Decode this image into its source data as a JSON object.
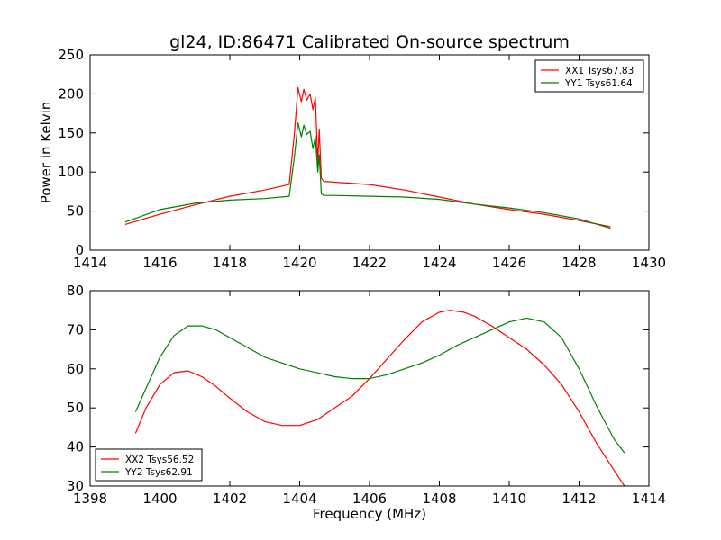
{
  "figure_title": "gl24, ID:86471 Calibrated On-source spectrum",
  "colors": {
    "xx": "#ff0000",
    "yy": "#008000"
  },
  "chart_data": [
    {
      "type": "line",
      "xlabel": "",
      "ylabel": "Power in Kelvin",
      "xlim": [
        1414,
        1430
      ],
      "ylim": [
        0,
        250
      ],
      "xticks": [
        1414,
        1416,
        1418,
        1420,
        1422,
        1424,
        1426,
        1428,
        1430
      ],
      "yticks": [
        0,
        50,
        100,
        150,
        200,
        250
      ],
      "legend_position": "top-right",
      "series": [
        {
          "name": "XX1 Tsys67.83",
          "color": "#ff0000",
          "x": [
            1415.0,
            1416.0,
            1417.0,
            1418.0,
            1419.0,
            1419.7,
            1419.85,
            1419.95,
            1420.05,
            1420.12,
            1420.2,
            1420.3,
            1420.38,
            1420.45,
            1420.52,
            1420.56,
            1420.62,
            1420.7,
            1421.0,
            1422.0,
            1423.0,
            1424.0,
            1425.0,
            1426.0,
            1427.0,
            1428.0,
            1428.9
          ],
          "y": [
            33,
            46,
            58,
            69,
            77,
            84,
            150,
            208,
            190,
            206,
            192,
            200,
            180,
            195,
            110,
            155,
            92,
            88,
            87,
            84,
            77,
            68,
            59,
            52,
            46,
            38,
            30
          ]
        },
        {
          "name": "YY1 Tsys61.64",
          "color": "#008000",
          "x": [
            1415.0,
            1416.0,
            1417.0,
            1418.0,
            1419.0,
            1419.7,
            1419.85,
            1419.95,
            1420.05,
            1420.12,
            1420.2,
            1420.3,
            1420.38,
            1420.45,
            1420.52,
            1420.56,
            1420.62,
            1420.7,
            1421.0,
            1422.0,
            1423.0,
            1424.0,
            1425.0,
            1426.0,
            1427.0,
            1428.0,
            1428.9
          ],
          "y": [
            36,
            52,
            60,
            64,
            66,
            69,
            120,
            163,
            145,
            160,
            148,
            152,
            130,
            145,
            100,
            122,
            72,
            70,
            70,
            69,
            68,
            65,
            59,
            54,
            48,
            40,
            28
          ]
        }
      ]
    },
    {
      "type": "line",
      "xlabel": "Frequency (MHz)",
      "ylabel": "",
      "xlim": [
        1398,
        1414
      ],
      "ylim": [
        30,
        80
      ],
      "xticks": [
        1398,
        1400,
        1402,
        1404,
        1406,
        1408,
        1410,
        1412,
        1414
      ],
      "yticks": [
        30,
        40,
        50,
        60,
        70,
        80
      ],
      "legend_position": "bottom-left",
      "series": [
        {
          "name": "XX2 Tsys56.52",
          "color": "#ff0000",
          "x": [
            1399.3,
            1399.6,
            1400.0,
            1400.4,
            1400.8,
            1401.2,
            1401.6,
            1402.0,
            1402.5,
            1403.0,
            1403.5,
            1404.0,
            1404.5,
            1405.0,
            1405.5,
            1406.0,
            1406.5,
            1407.0,
            1407.5,
            1408.0,
            1408.3,
            1408.7,
            1409.0,
            1409.5,
            1410.0,
            1410.5,
            1411.0,
            1411.5,
            1412.0,
            1412.5,
            1413.0,
            1413.3
          ],
          "y": [
            43.5,
            50,
            56,
            59,
            59.5,
            58,
            55.5,
            52.5,
            49,
            46.5,
            45.5,
            45.5,
            47,
            50,
            53,
            57.5,
            62.5,
            67.5,
            72,
            74.5,
            75,
            74.5,
            73.5,
            71,
            68,
            65,
            61,
            56,
            49,
            41,
            34,
            30
          ]
        },
        {
          "name": "YY2 Tsys62.91",
          "color": "#008000",
          "x": [
            1399.3,
            1399.6,
            1400.0,
            1400.4,
            1400.8,
            1401.2,
            1401.6,
            1402.0,
            1402.5,
            1403.0,
            1403.5,
            1404.0,
            1404.5,
            1405.0,
            1405.5,
            1406.0,
            1406.5,
            1407.0,
            1407.5,
            1408.0,
            1408.5,
            1409.0,
            1409.5,
            1410.0,
            1410.5,
            1411.0,
            1411.5,
            1412.0,
            1412.5,
            1413.0,
            1413.3
          ],
          "y": [
            49,
            55,
            63,
            68.5,
            71,
            71,
            70,
            68,
            65.5,
            63,
            61.5,
            60,
            59,
            58,
            57.5,
            57.5,
            58.5,
            60,
            61.5,
            63.5,
            66,
            68,
            70,
            72,
            73,
            72,
            68,
            60,
            50.5,
            42,
            38.5
          ]
        }
      ]
    }
  ]
}
